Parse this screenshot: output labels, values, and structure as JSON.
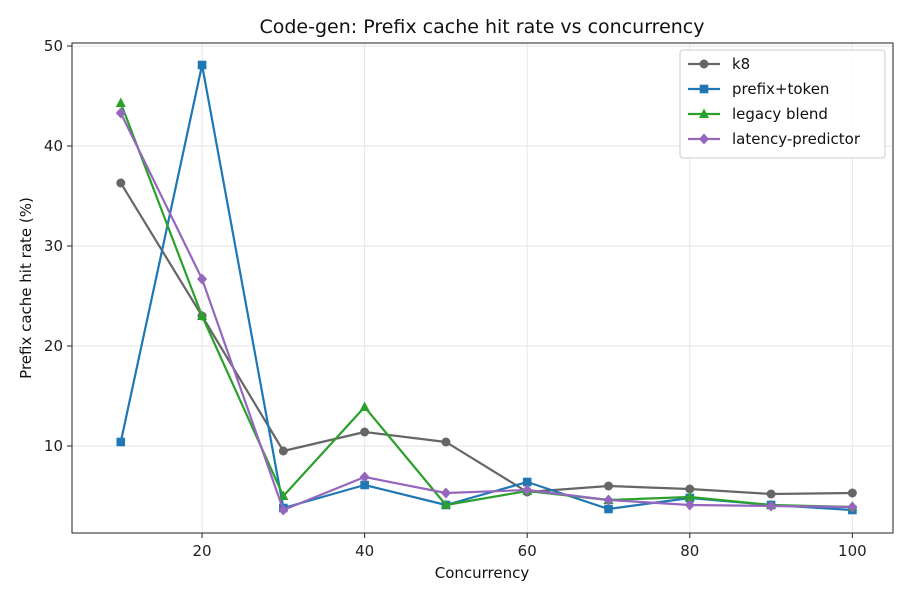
{
  "chart_data": {
    "type": "line",
    "title": "Code-gen: Prefix cache hit rate vs concurrency",
    "xlabel": "Concurrency",
    "ylabel": "Prefix cache hit rate (%)",
    "xlim": [
      4,
      105
    ],
    "ylim": [
      1.3,
      50.3
    ],
    "xticks": [
      20,
      40,
      60,
      80,
      100
    ],
    "yticks": [
      10,
      20,
      30,
      40,
      50
    ],
    "grid": true,
    "legend_position": "top-right",
    "x": [
      10,
      20,
      30,
      40,
      50,
      60,
      70,
      80,
      90,
      100
    ],
    "series": [
      {
        "name": "k8",
        "color": "#666666",
        "marker": "circle",
        "values": [
          36.3,
          23.0,
          9.5,
          11.4,
          10.4,
          5.4,
          6.0,
          5.7,
          5.2,
          5.3
        ]
      },
      {
        "name": "prefix+token",
        "color": "#1f77b4",
        "marker": "square",
        "values": [
          10.4,
          48.1,
          3.8,
          6.1,
          4.1,
          6.4,
          3.7,
          4.8,
          4.1,
          3.6
        ]
      },
      {
        "name": "legacy blend",
        "color": "#2ca02c",
        "marker": "triangle",
        "values": [
          44.3,
          23.0,
          5.0,
          13.9,
          4.1,
          5.5,
          4.6,
          4.9,
          4.1,
          3.9
        ]
      },
      {
        "name": "latency-predictor",
        "color": "#9467bd",
        "marker": "diamond",
        "values": [
          43.3,
          26.7,
          3.6,
          6.9,
          5.3,
          5.6,
          4.6,
          4.1,
          4.0,
          3.9
        ]
      }
    ]
  }
}
